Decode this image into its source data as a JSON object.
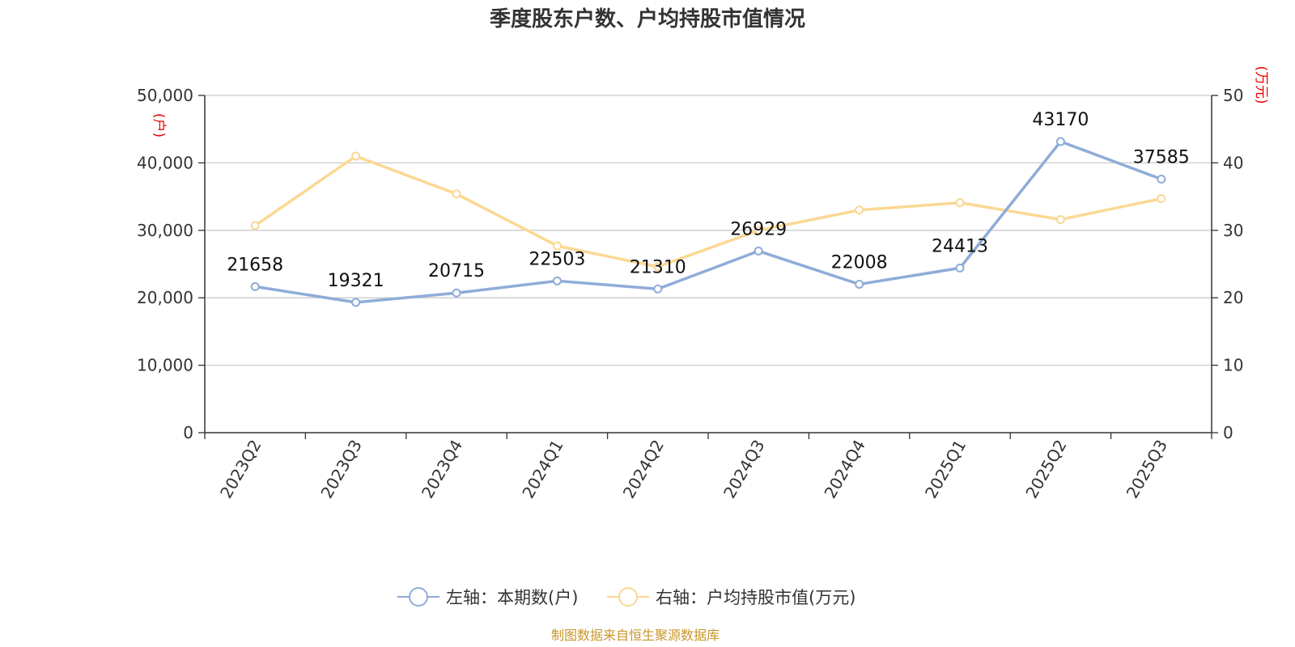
{
  "chart_data": {
    "type": "line",
    "title": "季度股东户数、户均持股市值情况",
    "categories": [
      "2023Q2",
      "2023Q3",
      "2023Q4",
      "2024Q1",
      "2024Q2",
      "2024Q3",
      "2024Q4",
      "2025Q1",
      "2025Q2",
      "2025Q3"
    ],
    "left_axis": {
      "unit": "(户)",
      "ylim": [
        0,
        50000
      ],
      "ticks": [
        "0",
        "10,000",
        "20,000",
        "30,000",
        "40,000",
        "50,000"
      ]
    },
    "right_axis": {
      "unit": "(万元)",
      "ylim": [
        0,
        50
      ],
      "ticks": [
        "0",
        "10",
        "20",
        "30",
        "40",
        "50"
      ]
    },
    "series": [
      {
        "name": "左轴：本期数(户)",
        "axis": "left",
        "color": "#8eacd8",
        "values": [
          21658,
          19321,
          20715,
          22503,
          21310,
          26929,
          22008,
          24413,
          43170,
          37585
        ],
        "show_labels": true
      },
      {
        "name": "右轴：户均持股市值(万元)",
        "axis": "right",
        "color": "#fbd893",
        "values": [
          30.7,
          41.0,
          35.4,
          27.7,
          24.6,
          30.0,
          33.0,
          34.1,
          31.6,
          34.7
        ],
        "show_labels": false
      }
    ],
    "grid": true,
    "legend_position": "bottom",
    "source": "制图数据来自恒生聚源数据库"
  }
}
